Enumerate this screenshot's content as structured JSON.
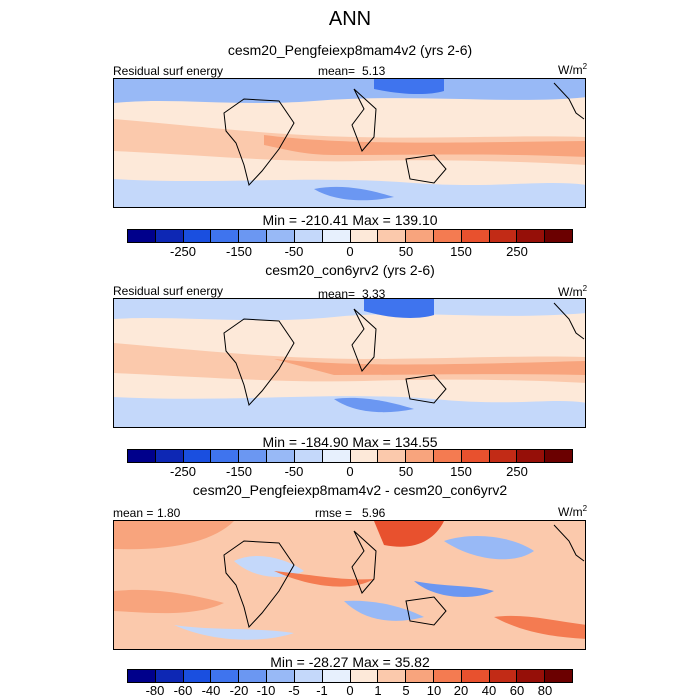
{
  "title": "ANN",
  "units_base": "W/m",
  "units_exp": "2",
  "panels": [
    {
      "title": "cesm20_Pengfeiexp8mam4v2 (yrs 2-6)",
      "left_label": "Residual surf energy",
      "stat_label": "mean=",
      "stat_value": "5.13",
      "minmax": "Min = -210.41 Max = 139.10",
      "ticks": [
        "-250",
        "-150",
        "-50",
        "0",
        "50",
        "150",
        "250"
      ]
    },
    {
      "title": "cesm20_con6yrv2 (yrs 2-6)",
      "left_label": "Residual surf energy",
      "stat_label": "mean=",
      "stat_value": "3.33",
      "minmax": "Min = -184.90 Max = 134.55",
      "ticks": [
        "-250",
        "-150",
        "-50",
        "0",
        "50",
        "150",
        "250"
      ]
    },
    {
      "title": "cesm20_Pengfeiexp8mam4v2 - cesm20_con6yrv2",
      "left_label": "mean =",
      "left_value": "1.80",
      "stat_label": "rmse =",
      "stat_value": "5.96",
      "minmax": "Min = -28.27 Max = 35.82",
      "ticks": [
        "-80",
        "-60",
        "-40",
        "-20",
        "-10",
        "-5",
        "-1",
        "0",
        "1",
        "5",
        "10",
        "20",
        "40",
        "60",
        "80"
      ]
    }
  ],
  "colorbar_colors": [
    "#00008b",
    "#0d27b4",
    "#1a4fe0",
    "#3f74ee",
    "#6b97f2",
    "#98b9f6",
    "#c4d8fa",
    "#e7f0fd",
    "#fde9d9",
    "#fbc9ac",
    "#f8a47d",
    "#f47b51",
    "#e8512e",
    "#c22b16",
    "#960f08",
    "#6b0000"
  ]
}
